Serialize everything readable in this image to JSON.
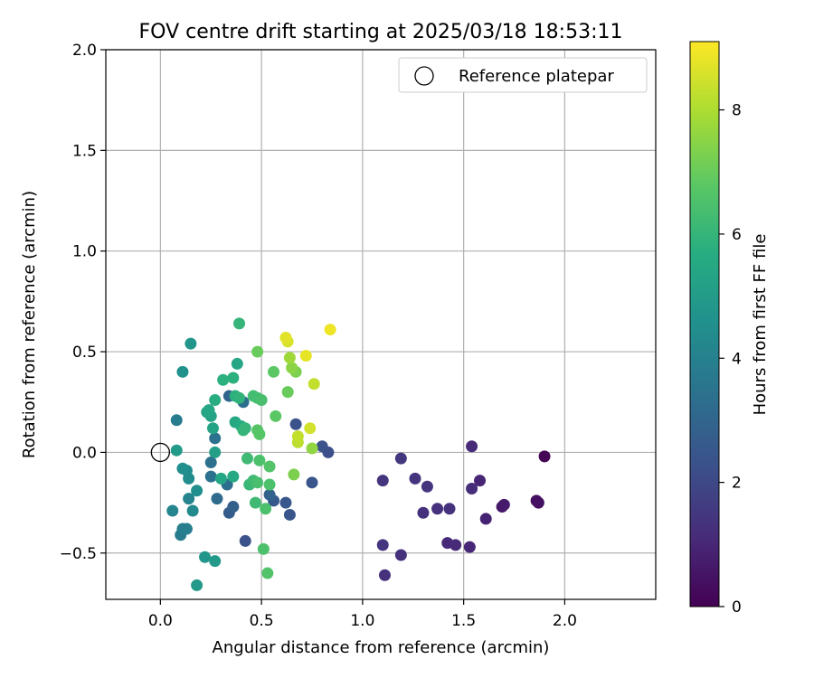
{
  "chart_data": {
    "type": "scatter",
    "title": "FOV centre drift starting at 2025/03/18 18:53:11",
    "xlabel": "Angular distance from reference (arcmin)",
    "ylabel": "Rotation from reference (arcmin)",
    "xlim": [
      -0.27,
      2.45
    ],
    "ylim": [
      -0.73,
      2.0
    ],
    "xticks": [
      0.0,
      0.5,
      1.0,
      1.5,
      2.0
    ],
    "xtick_labels": [
      "0.0",
      "0.5",
      "1.0",
      "1.5",
      "2.0"
    ],
    "yticks": [
      -0.5,
      0.0,
      0.5,
      1.0,
      1.5,
      2.0
    ],
    "ytick_labels": [
      "−0.5",
      "0.0",
      "0.5",
      "1.0",
      "1.5",
      "2.0"
    ],
    "grid": true,
    "legend": {
      "placement": "top-right",
      "entries": [
        "Reference platepar"
      ]
    },
    "reference_point": {
      "x": 0.0,
      "y": 0.0,
      "marker": "open-circle"
    },
    "colorbar": {
      "label": "Hours from first FF file",
      "colormap": "viridis",
      "range": [
        0,
        9.1
      ],
      "ticks": [
        0,
        2,
        4,
        6,
        8
      ],
      "tick_labels": [
        "0",
        "2",
        "4",
        "6",
        "8"
      ]
    },
    "series": [
      {
        "points": [
          {
            "x": 1.9,
            "y": -0.02,
            "c": 0.1
          },
          {
            "x": 1.86,
            "y": -0.24,
            "c": 0.4
          },
          {
            "x": 1.87,
            "y": -0.25,
            "c": 0.35
          },
          {
            "x": 1.69,
            "y": -0.27,
            "c": 0.6
          },
          {
            "x": 1.7,
            "y": -0.26,
            "c": 0.7
          },
          {
            "x": 1.61,
            "y": -0.33,
            "c": 0.9
          },
          {
            "x": 1.58,
            "y": -0.14,
            "c": 1.0
          },
          {
            "x": 1.54,
            "y": 0.03,
            "c": 1.1
          },
          {
            "x": 1.54,
            "y": -0.18,
            "c": 1.2
          },
          {
            "x": 1.53,
            "y": -0.47,
            "c": 1.0
          },
          {
            "x": 1.46,
            "y": -0.46,
            "c": 1.1
          },
          {
            "x": 1.42,
            "y": -0.45,
            "c": 1.1
          },
          {
            "x": 1.43,
            "y": -0.28,
            "c": 1.3
          },
          {
            "x": 1.37,
            "y": -0.28,
            "c": 1.3
          },
          {
            "x": 1.32,
            "y": -0.17,
            "c": 1.4
          },
          {
            "x": 1.3,
            "y": -0.3,
            "c": 1.3
          },
          {
            "x": 1.26,
            "y": -0.13,
            "c": 1.4
          },
          {
            "x": 1.19,
            "y": -0.03,
            "c": 1.5
          },
          {
            "x": 1.19,
            "y": -0.51,
            "c": 1.3
          },
          {
            "x": 1.1,
            "y": -0.14,
            "c": 1.4
          },
          {
            "x": 1.1,
            "y": -0.46,
            "c": 1.4
          },
          {
            "x": 1.11,
            "y": -0.61,
            "c": 1.3
          },
          {
            "x": 0.83,
            "y": 0.0,
            "c": 2.2
          },
          {
            "x": 0.8,
            "y": 0.03,
            "c": 2.3
          },
          {
            "x": 0.75,
            "y": -0.15,
            "c": 2.4
          },
          {
            "x": 0.67,
            "y": 0.14,
            "c": 2.3
          },
          {
            "x": 0.64,
            "y": -0.31,
            "c": 2.4
          },
          {
            "x": 0.62,
            "y": -0.25,
            "c": 2.5
          },
          {
            "x": 0.56,
            "y": -0.24,
            "c": 2.6
          },
          {
            "x": 0.54,
            "y": -0.21,
            "c": 2.9
          },
          {
            "x": 0.42,
            "y": -0.44,
            "c": 2.3
          },
          {
            "x": 0.36,
            "y": -0.27,
            "c": 2.8
          },
          {
            "x": 0.34,
            "y": -0.3,
            "c": 2.7
          },
          {
            "x": 0.34,
            "y": 0.28,
            "c": 3.0
          },
          {
            "x": 0.41,
            "y": 0.25,
            "c": 3.3
          },
          {
            "x": 0.33,
            "y": -0.16,
            "c": 3.3
          },
          {
            "x": 0.27,
            "y": 0.07,
            "c": 3.4
          },
          {
            "x": 0.28,
            "y": -0.23,
            "c": 3.2
          },
          {
            "x": 0.25,
            "y": -0.12,
            "c": 3.4
          },
          {
            "x": 0.25,
            "y": -0.05,
            "c": 3.4
          },
          {
            "x": 0.08,
            "y": 0.16,
            "c": 3.8
          },
          {
            "x": 0.1,
            "y": -0.41,
            "c": 3.8
          },
          {
            "x": 0.11,
            "y": -0.38,
            "c": 3.9
          },
          {
            "x": 0.13,
            "y": -0.38,
            "c": 3.9
          },
          {
            "x": 0.06,
            "y": -0.29,
            "c": 4.1
          },
          {
            "x": 0.14,
            "y": -0.23,
            "c": 4.1
          },
          {
            "x": 0.16,
            "y": -0.29,
            "c": 4.3
          },
          {
            "x": 0.18,
            "y": -0.19,
            "c": 4.5
          },
          {
            "x": 0.14,
            "y": -0.13,
            "c": 4.4
          },
          {
            "x": 0.13,
            "y": -0.09,
            "c": 4.4
          },
          {
            "x": 0.11,
            "y": -0.08,
            "c": 4.5
          },
          {
            "x": 0.11,
            "y": 0.4,
            "c": 4.6
          },
          {
            "x": 0.15,
            "y": 0.54,
            "c": 4.8
          },
          {
            "x": 0.22,
            "y": -0.52,
            "c": 4.8
          },
          {
            "x": 0.27,
            "y": -0.54,
            "c": 4.9
          },
          {
            "x": 0.18,
            "y": -0.66,
            "c": 4.9
          },
          {
            "x": 0.08,
            "y": 0.01,
            "c": 5.0
          },
          {
            "x": 0.27,
            "y": 0.0,
            "c": 5.1
          },
          {
            "x": 0.26,
            "y": 0.12,
            "c": 5.3
          },
          {
            "x": 0.23,
            "y": 0.2,
            "c": 5.3
          },
          {
            "x": 0.25,
            "y": 0.18,
            "c": 5.3
          },
          {
            "x": 0.24,
            "y": 0.21,
            "c": 5.4
          },
          {
            "x": 0.38,
            "y": 0.44,
            "c": 5.4
          },
          {
            "x": 0.3,
            "y": -0.13,
            "c": 5.4
          },
          {
            "x": 0.36,
            "y": -0.12,
            "c": 5.5
          },
          {
            "x": 0.37,
            "y": 0.15,
            "c": 5.5
          },
          {
            "x": 0.4,
            "y": 0.13,
            "c": 5.6
          },
          {
            "x": 0.27,
            "y": 0.26,
            "c": 5.7
          },
          {
            "x": 0.31,
            "y": 0.36,
            "c": 5.8
          },
          {
            "x": 0.36,
            "y": 0.37,
            "c": 5.8
          },
          {
            "x": 0.37,
            "y": 0.28,
            "c": 5.8
          },
          {
            "x": 0.39,
            "y": 0.27,
            "c": 5.9
          },
          {
            "x": 0.39,
            "y": 0.64,
            "c": 6.0
          },
          {
            "x": 0.41,
            "y": 0.11,
            "c": 6.0
          },
          {
            "x": 0.42,
            "y": 0.12,
            "c": 6.0
          },
          {
            "x": 0.44,
            "y": -0.16,
            "c": 6.1
          },
          {
            "x": 0.43,
            "y": -0.03,
            "c": 6.2
          },
          {
            "x": 0.46,
            "y": -0.14,
            "c": 6.2
          },
          {
            "x": 0.47,
            "y": -0.25,
            "c": 6.2
          },
          {
            "x": 0.46,
            "y": 0.28,
            "c": 6.3
          },
          {
            "x": 0.48,
            "y": 0.27,
            "c": 6.3
          },
          {
            "x": 0.5,
            "y": 0.26,
            "c": 6.4
          },
          {
            "x": 0.48,
            "y": -0.15,
            "c": 6.4
          },
          {
            "x": 0.49,
            "y": -0.04,
            "c": 6.5
          },
          {
            "x": 0.52,
            "y": -0.28,
            "c": 6.5
          },
          {
            "x": 0.51,
            "y": -0.48,
            "c": 6.5
          },
          {
            "x": 0.53,
            "y": -0.6,
            "c": 6.6
          },
          {
            "x": 0.54,
            "y": -0.07,
            "c": 6.6
          },
          {
            "x": 0.54,
            "y": -0.16,
            "c": 6.5
          },
          {
            "x": 0.48,
            "y": 0.11,
            "c": 6.7
          },
          {
            "x": 0.49,
            "y": 0.09,
            "c": 6.7
          },
          {
            "x": 0.57,
            "y": 0.18,
            "c": 6.8
          },
          {
            "x": 0.56,
            "y": 0.4,
            "c": 6.8
          },
          {
            "x": 0.48,
            "y": 0.5,
            "c": 7.0
          },
          {
            "x": 0.63,
            "y": 0.3,
            "c": 7.0
          },
          {
            "x": 0.66,
            "y": -0.11,
            "c": 7.3
          },
          {
            "x": 0.67,
            "y": 0.4,
            "c": 7.3
          },
          {
            "x": 0.65,
            "y": 0.42,
            "c": 7.5
          },
          {
            "x": 0.75,
            "y": 0.02,
            "c": 7.6
          },
          {
            "x": 0.64,
            "y": 0.47,
            "c": 7.8
          },
          {
            "x": 0.68,
            "y": 0.05,
            "c": 8.2
          },
          {
            "x": 0.68,
            "y": 0.08,
            "c": 8.3
          },
          {
            "x": 0.76,
            "y": 0.34,
            "c": 8.3
          },
          {
            "x": 0.74,
            "y": 0.12,
            "c": 8.5
          },
          {
            "x": 0.63,
            "y": 0.55,
            "c": 8.6
          },
          {
            "x": 0.62,
            "y": 0.57,
            "c": 8.7
          },
          {
            "x": 0.72,
            "y": 0.48,
            "c": 8.8
          },
          {
            "x": 0.84,
            "y": 0.61,
            "c": 8.9
          }
        ]
      }
    ]
  }
}
